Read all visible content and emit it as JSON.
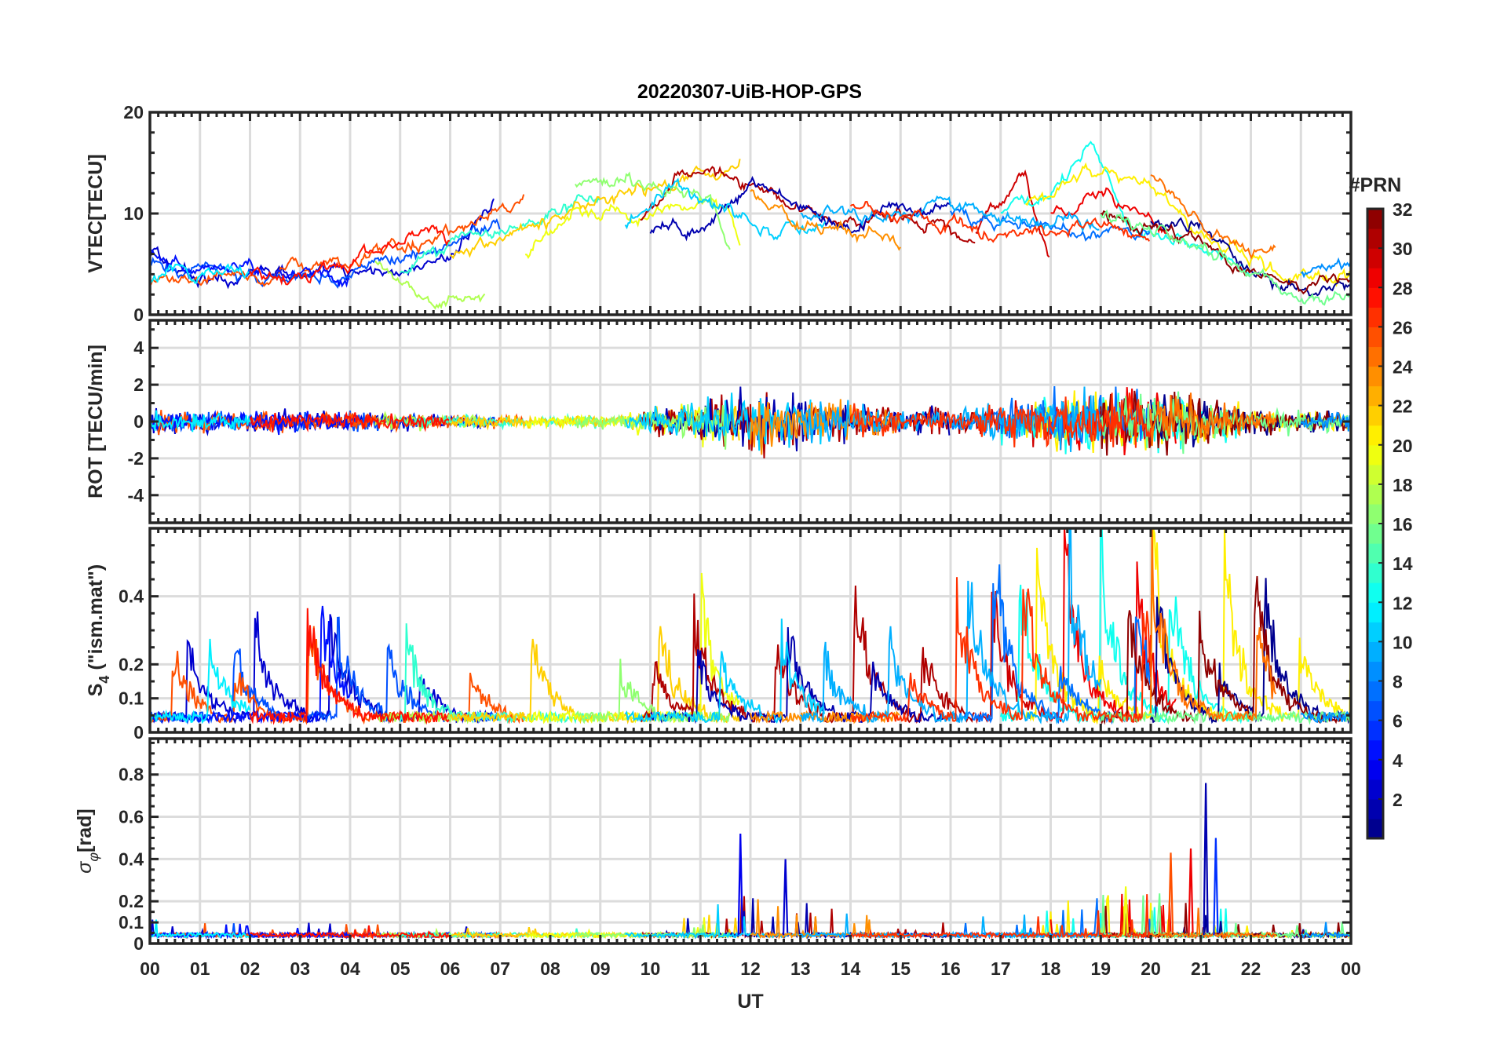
{
  "chart_data": {
    "type": "line",
    "title": "20220307-UiB-HOP-GPS",
    "xlabel": "UT",
    "xlim": [
      0,
      24
    ],
    "x_tick_labels": [
      "00",
      "01",
      "02",
      "03",
      "04",
      "05",
      "06",
      "07",
      "08",
      "09",
      "10",
      "11",
      "12",
      "13",
      "14",
      "15",
      "16",
      "17",
      "18",
      "19",
      "20",
      "21",
      "22",
      "23",
      "00"
    ],
    "grid": true,
    "colorbar": {
      "title": "#PRN",
      "colormap": "jet",
      "range": [
        1,
        32
      ],
      "levels": 32,
      "tick_labels": [
        "2",
        "4",
        "6",
        "8",
        "10",
        "12",
        "14",
        "16",
        "18",
        "20",
        "22",
        "24",
        "26",
        "28",
        "30",
        "32"
      ],
      "placement": "right"
    },
    "panels": [
      {
        "name": "vtec",
        "ylabel": "VTEC[TECU]",
        "ylim": [
          0,
          20
        ],
        "y_ticks": [
          0,
          10,
          20
        ],
        "y_tick_labels": [
          "0",
          "10",
          "20"
        ]
      },
      {
        "name": "rot",
        "ylabel": "ROT [TECU/min]",
        "ylim": [
          -5.5,
          5.5
        ],
        "y_ticks": [
          -4,
          -2,
          0,
          2,
          4
        ],
        "y_tick_labels": [
          "-4",
          "-2",
          "0",
          "2",
          "4"
        ],
        "activity_by_hour": [
          1,
          0.8,
          0.8,
          0.8,
          0.8,
          0.6,
          0.5,
          0.5,
          0.4,
          0.5,
          1,
          1.5,
          2.6,
          2,
          1.5,
          1,
          1,
          1.5,
          2,
          2.5,
          2.6,
          2,
          1,
          0.8,
          0.8
        ]
      },
      {
        "name": "s4",
        "ylabel_main": "S",
        "ylabel_sub": "4",
        "ylabel_rest": " (\"ism.mat\")",
        "ylim": [
          0,
          0.6
        ],
        "y_ticks": [
          0,
          0.1,
          0.2,
          0.4
        ],
        "y_tick_labels": [
          "0",
          "0.1",
          "0.2",
          "0.4"
        ]
      },
      {
        "name": "sigma_phi",
        "ylabel_main": "σ",
        "ylabel_sub": "φ",
        "ylabel_rest": "[rad]",
        "ylim": [
          0,
          0.97
        ],
        "y_ticks": [
          0,
          0.1,
          0.2,
          0.4,
          0.6,
          0.8
        ],
        "y_tick_labels": [
          "0",
          "0.1",
          "0.2",
          "0.4",
          "0.6",
          "0.8"
        ],
        "spikes": [
          {
            "hour": 11.8,
            "value": 0.52,
            "prn": 4
          },
          {
            "hour": 12.7,
            "value": 0.4,
            "prn": 3
          },
          {
            "hour": 19.5,
            "value": 0.27,
            "prn": 20
          },
          {
            "hour": 20.4,
            "value": 0.43,
            "prn": 26
          },
          {
            "hour": 20.8,
            "value": 0.45,
            "prn": 29
          },
          {
            "hour": 21.1,
            "value": 0.76,
            "prn": 2
          },
          {
            "hour": 21.3,
            "value": 0.5,
            "prn": 6
          }
        ]
      }
    ],
    "series": [
      {
        "prn": 3,
        "vtec": [
          [
            0,
            6
          ],
          [
            1,
            3
          ],
          [
            2,
            4
          ],
          [
            3,
            4
          ],
          [
            4,
            4
          ],
          [
            5,
            4
          ],
          [
            6,
            5.5
          ],
          [
            6.9,
            11.5
          ]
        ]
      },
      {
        "prn": 7,
        "vtec": [
          [
            0,
            5
          ],
          [
            2,
            4
          ],
          [
            4,
            4
          ],
          [
            6,
            7
          ],
          [
            7,
            9
          ]
        ]
      },
      {
        "prn": 26,
        "vtec": [
          [
            0,
            3
          ],
          [
            2,
            4
          ],
          [
            4,
            5
          ],
          [
            6,
            8
          ],
          [
            7.5,
            11.5
          ]
        ]
      },
      {
        "prn": 18,
        "vtec": [
          [
            4.5,
            5
          ],
          [
            5.5,
            1
          ],
          [
            6.7,
            2
          ]
        ]
      },
      {
        "prn": 14,
        "vtec": [
          [
            5,
            4
          ],
          [
            6,
            7
          ],
          [
            7,
            8
          ],
          [
            8.5,
            11
          ],
          [
            9,
            12
          ]
        ]
      },
      {
        "prn": 22,
        "vtec": [
          [
            6,
            6
          ],
          [
            8,
            9
          ],
          [
            9.5,
            12
          ],
          [
            11,
            14
          ],
          [
            11.8,
            15
          ]
        ]
      },
      {
        "prn": 20,
        "vtec": [
          [
            7.5,
            6
          ],
          [
            8.5,
            10
          ],
          [
            10,
            10
          ],
          [
            11.5,
            11
          ],
          [
            11.8,
            6.5
          ]
        ]
      },
      {
        "prn": 31,
        "vtec": [
          [
            9.8,
            9
          ],
          [
            10.5,
            14
          ],
          [
            11,
            14
          ],
          [
            12,
            13
          ],
          [
            13,
            10
          ],
          [
            14,
            9
          ],
          [
            15,
            10
          ],
          [
            16,
            8
          ],
          [
            16.5,
            7
          ]
        ]
      },
      {
        "prn": 2,
        "vtec": [
          [
            10,
            8
          ],
          [
            11,
            8
          ],
          [
            12,
            13
          ],
          [
            13,
            11
          ],
          [
            14,
            9
          ],
          [
            15,
            10
          ],
          [
            16,
            11
          ]
        ]
      },
      {
        "prn": 17,
        "vtec": [
          [
            8.5,
            13
          ],
          [
            10,
            13
          ],
          [
            11.2,
            12
          ],
          [
            11.6,
            6
          ]
        ]
      },
      {
        "prn": 11,
        "vtec": [
          [
            9.5,
            9
          ],
          [
            10.5,
            13
          ],
          [
            11.5,
            10
          ],
          [
            12.5,
            8
          ],
          [
            13.5,
            9
          ]
        ]
      },
      {
        "prn": 24,
        "vtec": [
          [
            12,
            12
          ],
          [
            13,
            9
          ],
          [
            14,
            8
          ],
          [
            15,
            7
          ]
        ]
      },
      {
        "prn": 30,
        "vtec": [
          [
            16.5,
            8
          ],
          [
            17.5,
            14
          ],
          [
            18,
            5
          ]
        ]
      },
      {
        "prn": 13,
        "vtec": [
          [
            17,
            10
          ],
          [
            18,
            12
          ],
          [
            18.8,
            17
          ],
          [
            19.5,
            10
          ],
          [
            20,
            8
          ],
          [
            21,
            7
          ],
          [
            22,
            4
          ]
        ]
      },
      {
        "prn": 21,
        "vtec": [
          [
            17.5,
            11
          ],
          [
            19,
            15
          ],
          [
            20,
            13
          ],
          [
            21,
            8
          ],
          [
            22,
            5
          ],
          [
            23,
            3.5
          ],
          [
            24,
            4
          ]
        ]
      },
      {
        "prn": 29,
        "vtec": [
          [
            18,
            10
          ],
          [
            19,
            12
          ],
          [
            20,
            9
          ],
          [
            20.5,
            8
          ]
        ]
      },
      {
        "prn": 8,
        "vtec": [
          [
            16,
            10
          ],
          [
            18,
            9
          ],
          [
            19,
            8
          ],
          [
            20,
            9
          ]
        ]
      },
      {
        "prn": 1,
        "vtec": [
          [
            20,
            9
          ],
          [
            21,
            9
          ],
          [
            22,
            4
          ],
          [
            23,
            3
          ],
          [
            24,
            3
          ]
        ]
      },
      {
        "prn": 32,
        "vtec": [
          [
            19,
            10
          ],
          [
            20.5,
            8
          ],
          [
            21.5,
            6
          ],
          [
            22,
            4
          ],
          [
            23,
            3
          ],
          [
            24,
            3
          ]
        ]
      },
      {
        "prn": 16,
        "vtec": [
          [
            19,
            10
          ],
          [
            21,
            7
          ],
          [
            22,
            4
          ],
          [
            23,
            2
          ],
          [
            24,
            2
          ]
        ]
      },
      {
        "prn": 25,
        "vtec": [
          [
            20,
            14
          ],
          [
            21,
            9
          ],
          [
            22,
            6
          ],
          [
            22.5,
            7.5
          ]
        ]
      },
      {
        "prn": 9,
        "vtec": [
          [
            23,
            4
          ],
          [
            24,
            5.5
          ]
        ]
      },
      {
        "prn": 10,
        "vtec": [
          [
            13,
            10
          ],
          [
            15,
            10
          ],
          [
            16,
            11
          ],
          [
            17,
            9.5
          ],
          [
            18,
            9
          ],
          [
            19,
            8.5
          ]
        ]
      },
      {
        "prn": 27,
        "vtec": [
          [
            14,
            11
          ],
          [
            15.5,
            9
          ],
          [
            17,
            8
          ],
          [
            19,
            9
          ],
          [
            20,
            8
          ]
        ]
      },
      {
        "prn": 5,
        "vtec": [
          [
            0,
            6.5
          ],
          [
            1,
            4
          ],
          [
            2,
            4.5
          ],
          [
            3,
            4
          ],
          [
            4,
            3.5
          ]
        ]
      },
      {
        "prn": 12,
        "vtec": [
          [
            0,
            3.5
          ],
          [
            1,
            4
          ],
          [
            2,
            4
          ]
        ]
      },
      {
        "prn": 28,
        "vtec": [
          [
            2,
            4
          ],
          [
            3,
            3.5
          ],
          [
            4,
            5
          ],
          [
            5,
            7
          ],
          [
            6,
            8
          ]
        ]
      }
    ]
  }
}
